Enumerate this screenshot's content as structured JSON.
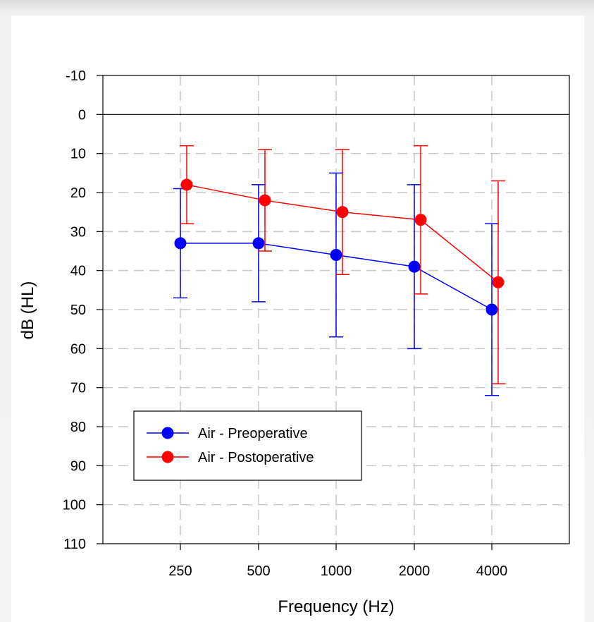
{
  "chart_data": {
    "type": "line",
    "xlabel": "Frequency (Hz)",
    "ylabel": "dB (HL)",
    "categories": [
      "250",
      "500",
      "1000",
      "2000",
      "4000"
    ],
    "y_ticks": [
      -10,
      0,
      10,
      20,
      30,
      40,
      50,
      60,
      70,
      80,
      90,
      100,
      110
    ],
    "y_tick_labels": [
      "-10",
      "0",
      "10",
      "20",
      "30",
      "40",
      "50",
      "60",
      "70",
      "80",
      "90",
      "100",
      "110"
    ],
    "ylim": [
      110,
      -10
    ],
    "y_inverted": true,
    "grid": "dashed",
    "reference_line": 0,
    "legend_position": "bottom-left",
    "series": [
      {
        "name": "Air - Preoperative",
        "color": "#0000ff",
        "values": [
          33,
          33,
          36,
          39,
          50
        ],
        "err_low": [
          19,
          18,
          15,
          18,
          28
        ],
        "err_high": [
          47,
          48,
          57,
          60,
          72
        ]
      },
      {
        "name": "Air - Postoperative",
        "color": "#ff0000",
        "values": [
          18,
          22,
          25,
          27,
          43
        ],
        "err_low": [
          8,
          9,
          9,
          8,
          17
        ],
        "err_high": [
          28,
          35,
          41,
          46,
          69
        ]
      }
    ]
  }
}
